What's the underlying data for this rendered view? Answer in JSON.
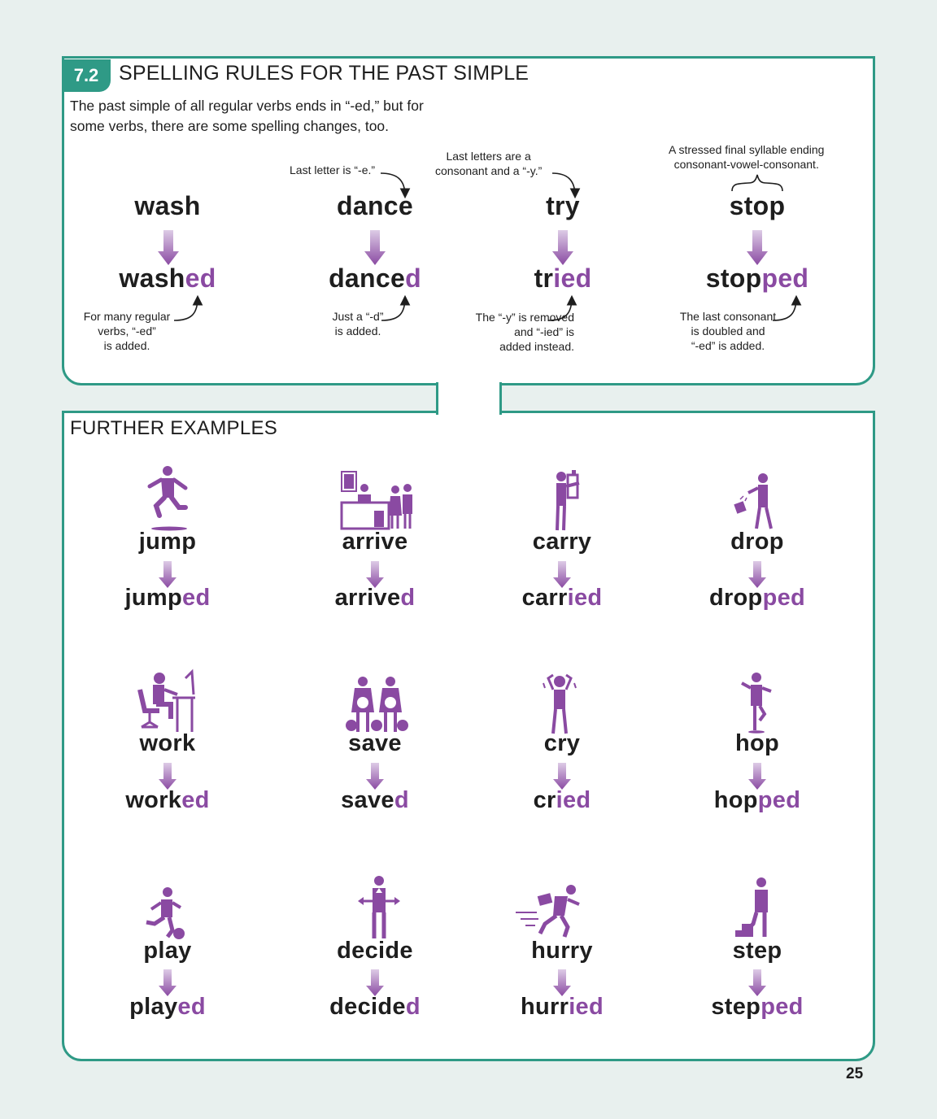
{
  "header": {
    "section_number": "7.2",
    "title": "SPELLING RULES FOR THE PAST SIMPLE",
    "intro": "The past simple of all regular verbs ends in “-ed,” but for some verbs, there are some spelling changes, too."
  },
  "rules": [
    {
      "base": "wash",
      "past_stem": "wash",
      "past_suffix": "ed",
      "note_above": "",
      "note_below": "For many regular\nverbs, “-ed”\nis added."
    },
    {
      "base": "dance",
      "past_stem": "dance",
      "past_suffix": "d",
      "note_above": "Last letter is “-e.”",
      "note_below": "Just a “-d”\nis added."
    },
    {
      "base": "try",
      "past_stem": "tr",
      "past_suffix": "ied",
      "note_above": "Last letters are a\nconsonant and a “-y.”",
      "note_below": "The “-y” is removed\nand “-ied” is\nadded instead."
    },
    {
      "base": "stop",
      "past_stem": "stop",
      "past_suffix": "ped",
      "note_above": "A stressed final syllable ending\nconsonant-vowel-consonant.",
      "note_below": "The last consonant\nis doubled and\n“-ed” is added."
    }
  ],
  "further": {
    "title": "FURTHER EXAMPLES",
    "items": [
      {
        "base": "jump",
        "stem": "jump",
        "suffix": "ed",
        "icon": "jumping-person-icon"
      },
      {
        "base": "arrive",
        "stem": "arrive",
        "suffix": "d",
        "icon": "hotel-reception-icon"
      },
      {
        "base": "carry",
        "stem": "carr",
        "suffix": "ied",
        "icon": "person-carrying-box-icon"
      },
      {
        "base": "drop",
        "stem": "drop",
        "suffix": "ped",
        "icon": "person-dropping-bag-icon"
      },
      {
        "base": "work",
        "stem": "work",
        "suffix": "ed",
        "icon": "person-at-desk-icon"
      },
      {
        "base": "save",
        "stem": "save",
        "suffix": "d",
        "icon": "money-bags-couple-icon"
      },
      {
        "base": "cry",
        "stem": "cr",
        "suffix": "ied",
        "icon": "crying-person-icon"
      },
      {
        "base": "hop",
        "stem": "hop",
        "suffix": "ped",
        "icon": "hopping-person-icon"
      },
      {
        "base": "play",
        "stem": "play",
        "suffix": "ed",
        "icon": "football-player-icon"
      },
      {
        "base": "decide",
        "stem": "decide",
        "suffix": "d",
        "icon": "person-choosing-direction-icon"
      },
      {
        "base": "hurry",
        "stem": "hurr",
        "suffix": "ied",
        "icon": "running-businessman-icon"
      },
      {
        "base": "step",
        "stem": "step",
        "suffix": "ped",
        "icon": "person-on-step-icon"
      }
    ]
  },
  "page_number": "25",
  "colors": {
    "accent": "#2f9a86",
    "suffix": "#8a4aa2",
    "arrow_top": "#d6c4e0",
    "arrow_bottom": "#8a4aa2"
  }
}
